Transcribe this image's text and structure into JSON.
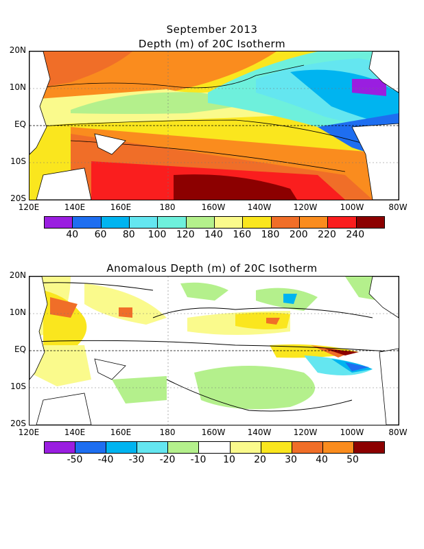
{
  "figure": {
    "title": "September 2013",
    "panels": [
      {
        "title": "Depth (m) of 20C Isotherm",
        "lat_labels": [
          "20N",
          "10N",
          "EQ",
          "10S",
          "20S"
        ],
        "lon_labels": [
          "120E",
          "140E",
          "160E",
          "180",
          "160W",
          "140W",
          "120W",
          "100W",
          "80W"
        ],
        "colorbar": {
          "labels": [
            "40",
            "60",
            "80",
            "100",
            "120",
            "140",
            "160",
            "180",
            "200",
            "220",
            "240"
          ],
          "colors": [
            "#9a1ee0",
            "#1e6ef0",
            "#00b4f0",
            "#64e6f0",
            "#6ef0dc",
            "#b4f08c",
            "#fafa8c",
            "#fae61e",
            "#f06e28",
            "#fa8c1e",
            "#fa1e1e",
            "#8c0000"
          ]
        }
      },
      {
        "title": "Anomalous Depth (m) of 20C Isotherm",
        "lat_labels": [
          "20N",
          "10N",
          "EQ",
          "10S",
          "20S"
        ],
        "lon_labels": [
          "120E",
          "140E",
          "160E",
          "180",
          "160W",
          "140W",
          "120W",
          "100W",
          "80W"
        ],
        "colorbar": {
          "labels": [
            "-50",
            "-40",
            "-30",
            "-20",
            "-10",
            "10",
            "20",
            "30",
            "40",
            "50"
          ],
          "colors": [
            "#9a1ee0",
            "#1e6ef0",
            "#00b4f0",
            "#64e6f0",
            "#b4f08c",
            "#ffffff",
            "#fafa8c",
            "#fae61e",
            "#f06e28",
            "#fa8c1e",
            "#8c0000"
          ]
        }
      }
    ]
  }
}
